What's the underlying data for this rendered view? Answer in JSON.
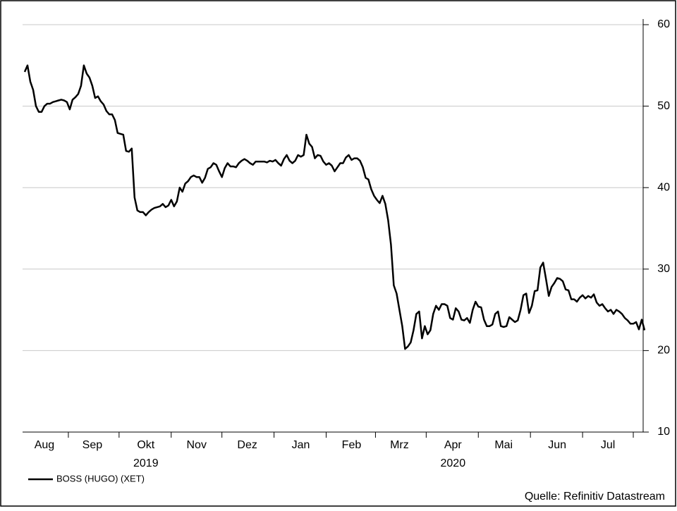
{
  "chart_data": {
    "type": "line",
    "source": "Quelle: Refinitiv Datastream",
    "categories": [
      null,
      null,
      null,
      null,
      null,
      null,
      null,
      "Aug",
      null,
      null,
      null,
      null,
      null,
      null,
      null,
      null,
      null,
      null,
      null,
      null,
      null,
      null,
      null,
      null,
      "Sep",
      null,
      null,
      null,
      null,
      null,
      null,
      null,
      null,
      null,
      null,
      null,
      null,
      null,
      null,
      null,
      null,
      null,
      null,
      "Okt",
      null,
      null,
      null,
      null,
      null,
      null,
      null,
      null,
      null,
      null,
      null,
      null,
      null,
      null,
      null,
      null,
      null,
      "Nov",
      null,
      null,
      null,
      null,
      null,
      null,
      null,
      null,
      null,
      null,
      null,
      null,
      null,
      null,
      null,
      null,
      null,
      "Dez",
      null,
      null,
      null,
      null,
      null,
      null,
      null,
      null,
      null,
      null,
      null,
      null,
      null,
      null,
      null,
      null,
      null,
      null,
      "Jan",
      null,
      null,
      null,
      null,
      null,
      null,
      null,
      null,
      null,
      null,
      null,
      null,
      null,
      null,
      null,
      null,
      null,
      "Feb",
      null,
      null,
      null,
      null,
      null,
      null,
      null,
      null,
      null,
      null,
      null,
      null,
      null,
      null,
      null,
      null,
      "Mrz",
      null,
      null,
      null,
      null,
      null,
      null,
      null,
      null,
      null,
      null,
      null,
      null,
      null,
      null,
      null,
      null,
      null,
      null,
      "Apr",
      null,
      null,
      null,
      null,
      null,
      null,
      null,
      null,
      null,
      null,
      null,
      null,
      null,
      null,
      null,
      null,
      null,
      "Mai",
      null,
      null,
      null,
      null,
      null,
      null,
      null,
      null,
      null,
      null,
      null,
      null,
      null,
      null,
      null,
      null,
      null,
      null,
      "Jun",
      null,
      null,
      null,
      null,
      null,
      null,
      null,
      null,
      null,
      null,
      null,
      null,
      null,
      null,
      null,
      null,
      null,
      "Jul",
      null,
      null,
      null,
      null,
      null,
      null,
      null,
      null,
      null,
      null,
      null,
      null,
      null
    ],
    "years": [
      null,
      null,
      null,
      null,
      null,
      null,
      null,
      null,
      null,
      null,
      null,
      null,
      null,
      null,
      null,
      null,
      null,
      null,
      null,
      null,
      null,
      null,
      null,
      null,
      null,
      null,
      null,
      null,
      null,
      null,
      null,
      null,
      null,
      null,
      null,
      null,
      null,
      null,
      null,
      null,
      null,
      null,
      null,
      "2019",
      null,
      null,
      null,
      null,
      null,
      null,
      null,
      null,
      null,
      null,
      null,
      null,
      null,
      null,
      null,
      null,
      null,
      null,
      null,
      null,
      null,
      null,
      null,
      null,
      null,
      null,
      null,
      null,
      null,
      null,
      null,
      null,
      null,
      null,
      null,
      null,
      null,
      null,
      null,
      null,
      null,
      null,
      null,
      null,
      null,
      null,
      null,
      null,
      null,
      null,
      null,
      null,
      null,
      null,
      null,
      null,
      null,
      null,
      null,
      null,
      null,
      null,
      null,
      null,
      null,
      null,
      null,
      null,
      null,
      null,
      null,
      null,
      null,
      null,
      null,
      null,
      null,
      null,
      null,
      null,
      null,
      null,
      null,
      null,
      null,
      null,
      null,
      null,
      null,
      null,
      null,
      null,
      null,
      null,
      null,
      null,
      null,
      null,
      null,
      null,
      null,
      null,
      null,
      null,
      null,
      null,
      null,
      null,
      "2020",
      null,
      null,
      null,
      null,
      null,
      null,
      null,
      null,
      null,
      null,
      null,
      null,
      null,
      null,
      null,
      null,
      null,
      null,
      null,
      null,
      null,
      null,
      null,
      null,
      null,
      null,
      null,
      null,
      null,
      null,
      null,
      null,
      null,
      null,
      null,
      null,
      null,
      null,
      null,
      null,
      null,
      null,
      null,
      null,
      null,
      null,
      null,
      null,
      null,
      null,
      null,
      null,
      null,
      null,
      null,
      null,
      null,
      null,
      null,
      null,
      null,
      null,
      null,
      null,
      null,
      null,
      null,
      null
    ],
    "series": [
      {
        "name": "BOSS (HUGO) (XET)",
        "color": "#000000",
        "values": [
          54.2,
          55,
          53,
          52,
          50,
          49.3,
          49.3,
          50,
          50.3,
          50.3,
          50.5,
          50.6,
          50.7,
          50.8,
          50.7,
          50.5,
          49.6,
          50.8,
          51.1,
          51.5,
          52.5,
          55,
          54,
          53.5,
          52.5,
          51,
          51.2,
          50.6,
          50.2,
          49.4,
          49,
          49,
          48.3,
          46.7,
          46.6,
          46.5,
          44.5,
          44.4,
          44.8,
          38.8,
          37.2,
          37,
          37,
          36.6,
          37,
          37.3,
          37.5,
          37.6,
          37.7,
          38,
          37.6,
          37.8,
          38.5,
          37.7,
          38.3,
          40,
          39.5,
          40.5,
          40.8,
          41.3,
          41.5,
          41.3,
          41.3,
          40.6,
          41.2,
          42.3,
          42.5,
          43,
          42.8,
          42,
          41.3,
          42.4,
          43,
          42.6,
          42.6,
          42.5,
          43,
          43.3,
          43.5,
          43.3,
          43,
          42.8,
          43.2,
          43.2,
          43.2,
          43.2,
          43.1,
          43.3,
          43.2,
          43.4,
          43,
          42.7,
          43.5,
          44,
          43.3,
          43,
          43.3,
          44,
          43.8,
          44,
          46.5,
          45.4,
          45,
          43.6,
          44,
          43.9,
          43.2,
          42.8,
          43,
          42.7,
          42,
          42.5,
          43,
          43,
          43.7,
          44,
          43.4,
          43.6,
          43.6,
          43.3,
          42.5,
          41.2,
          41,
          39.8,
          39,
          38.5,
          38.1,
          39,
          38,
          36,
          33,
          28,
          27,
          25,
          23,
          20.2,
          20.5,
          21,
          22.5,
          24.5,
          24.8,
          21.5,
          23,
          22,
          22.5,
          24.5,
          25.5,
          25,
          25.7,
          25.7,
          25.5,
          24,
          23.8,
          25.2,
          24.8,
          23.8,
          23.7,
          24,
          23.4,
          25,
          26,
          25.4,
          25.3,
          23.8,
          23,
          23,
          23.2,
          24.5,
          24.8,
          23,
          22.9,
          23,
          24.1,
          23.8,
          23.5,
          23.7,
          25,
          26.8,
          27,
          24.6,
          25.5,
          27.3,
          27.4,
          30.2,
          30.8,
          28.8,
          26.7,
          27.8,
          28.3,
          28.9,
          28.8,
          28.5,
          27.5,
          27.4,
          26.3,
          26.3,
          26,
          26.5,
          26.8,
          26.4,
          26.7,
          26.5,
          26.9,
          25.9,
          25.5,
          25.7,
          25.2,
          24.8,
          25,
          24.5,
          25,
          24.8,
          24.5,
          24,
          23.7,
          23.3,
          23.3,
          23.5,
          22.6,
          23.8,
          22.5
        ]
      }
    ],
    "ylim": [
      10,
      60
    ],
    "yticks": [
      10,
      20,
      30,
      40,
      50,
      60
    ],
    "grid": true,
    "y_axis_side": "right",
    "legend": "bottom-left"
  }
}
